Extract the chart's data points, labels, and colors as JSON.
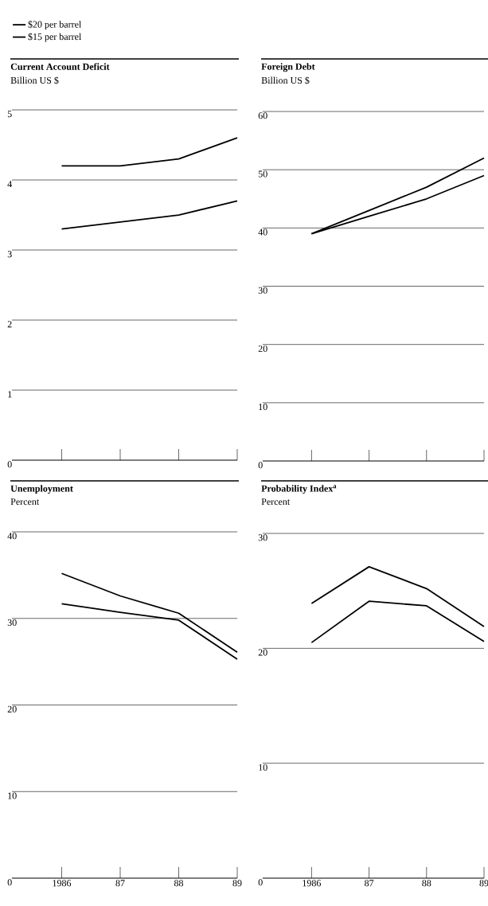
{
  "chart_data": [
    {
      "type": "line",
      "title": "Current Account Deficit",
      "subtitle": "Billion US $",
      "categories": [
        "1986",
        "87",
        "88",
        "89"
      ],
      "ylim": [
        0,
        5
      ],
      "yticks": [
        0,
        1,
        2,
        3,
        4,
        5
      ],
      "grid": "y",
      "tick_labels": "y",
      "legend": "top left",
      "series": [
        {
          "name": "$20 per barrel",
          "color": "#000000",
          "values": [
            3.3,
            3.4,
            3.5,
            3.7
          ]
        },
        {
          "name": "$15 per barrel",
          "color": "#000000",
          "values": [
            4.2,
            4.2,
            4.3,
            4.6
          ]
        }
      ]
    },
    {
      "type": "line",
      "title": "Foreign Debt",
      "subtitle": "Billion US $",
      "categories": [
        "1986",
        "87",
        "88",
        "89"
      ],
      "ylim": [
        0,
        60
      ],
      "yticks": [
        0,
        10,
        20,
        30,
        40,
        50,
        60
      ],
      "grid": "y",
      "tick_labels": "y",
      "series": [
        {
          "color": "#000000",
          "values": [
            39,
            42,
            45,
            49
          ]
        },
        {
          "color": "#000000",
          "values": [
            39,
            43,
            47,
            52
          ]
        }
      ]
    },
    {
      "type": "line",
      "title": "Unemployment",
      "subtitle": "Percent",
      "categories": [
        "1986",
        "87",
        "88",
        "89"
      ],
      "ylim": [
        0,
        40
      ],
      "yticks": [
        0,
        10,
        20,
        30,
        40
      ],
      "grid": "y",
      "series": [
        {
          "color": "#000000",
          "values": [
            31.7,
            30.7,
            29.8,
            25.3
          ]
        },
        {
          "color": "#000000",
          "values": [
            35.2,
            32.6,
            30.6,
            26.1
          ]
        }
      ]
    },
    {
      "type": "line",
      "title": "Probability Index$^{a}$",
      "subtitle": "Percent",
      "categories": [
        "1986",
        "87",
        "88",
        "89"
      ],
      "ylim": [
        0,
        30
      ],
      "yticks": [
        0,
        10,
        20,
        30
      ],
      "grid": "y",
      "series": [
        {
          "color": "#000000",
          "values": [
            20.5,
            24.1,
            23.7,
            20.6
          ]
        },
        {
          "color": "#000000",
          "values": [
            23.9,
            27.1,
            25.2,
            21.9
          ]
        }
      ]
    }
  ]
}
